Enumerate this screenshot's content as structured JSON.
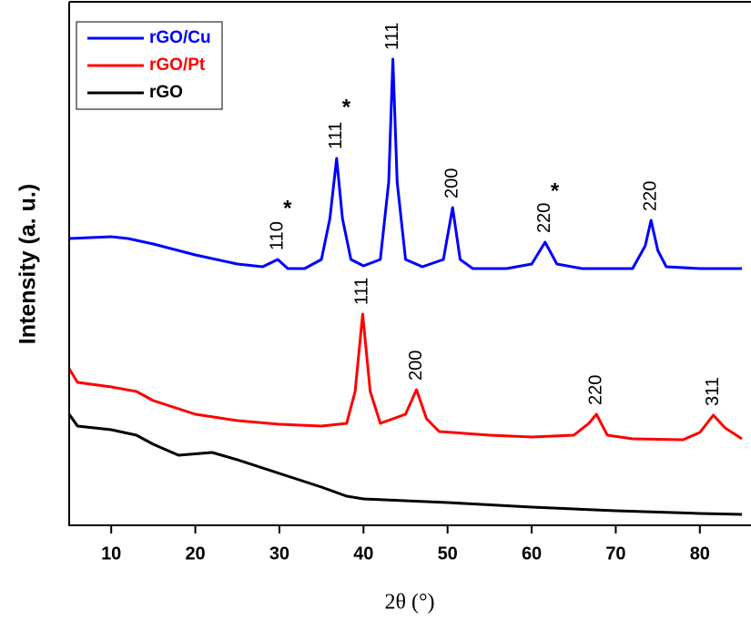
{
  "chart_data": {
    "type": "line",
    "xlabel": "2θ (°)",
    "ylabel": "Intensity (a. u.)",
    "xlim": [
      5,
      85
    ],
    "xticks": [
      10,
      20,
      30,
      40,
      50,
      60,
      70,
      80
    ],
    "ylim": [
      0,
      115
    ],
    "series": [
      {
        "name": "rGO/Cu",
        "color": "#0000ff",
        "x": [
          5,
          10,
          12,
          15,
          20,
          25,
          28,
          29.8,
          31,
          33,
          35,
          36,
          36.8,
          37.5,
          38.5,
          40,
          42,
          43,
          43.5,
          44,
          45,
          47,
          49.5,
          50.6,
          51.5,
          53,
          57,
          60,
          61.6,
          63,
          66,
          72,
          73.5,
          74.2,
          75,
          76,
          80,
          85
        ],
        "values": [
          63,
          63.4,
          63,
          61.8,
          59.4,
          57.4,
          56.8,
          58.4,
          56.4,
          56.4,
          58.4,
          67.4,
          80.6,
          67.4,
          58.4,
          57,
          58.4,
          75.4,
          102.4,
          75.4,
          58.4,
          56.8,
          58.4,
          69.8,
          58.4,
          56.4,
          56.4,
          57.4,
          62.2,
          57.4,
          56.4,
          56.4,
          61.4,
          67,
          60.4,
          56.8,
          56.4,
          56.4
        ]
      },
      {
        "name": "rGO/Pt",
        "color": "#ff0000",
        "x": [
          5,
          6,
          10,
          13,
          15,
          20,
          25,
          30,
          35,
          38,
          39,
          39.9,
          40.8,
          42,
          45,
          46.3,
          47.5,
          49,
          55,
          60,
          65,
          66.8,
          67.7,
          69,
          72,
          78,
          80,
          81.6,
          83,
          85
        ],
        "values": [
          34.4,
          31.4,
          30.4,
          29.4,
          27.4,
          24.4,
          23,
          22.2,
          21.8,
          22.4,
          29.4,
          46.4,
          29.4,
          22.4,
          24.4,
          29.8,
          23.4,
          20.6,
          19.8,
          19.4,
          19.8,
          22.4,
          24.4,
          19.8,
          19,
          18.8,
          20.4,
          24.2,
          21.4,
          19
        ]
      },
      {
        "name": "rGO",
        "color": "#000000",
        "x": [
          5,
          6,
          8,
          10,
          13,
          15,
          18,
          22,
          25,
          30,
          35,
          38,
          40,
          50,
          60,
          70,
          80,
          85
        ],
        "values": [
          24.4,
          21.8,
          21.4,
          21,
          19.8,
          17.8,
          15.4,
          16,
          14.4,
          11.4,
          8.4,
          6.4,
          5.8,
          5,
          4,
          3.2,
          2.6,
          2.4
        ]
      }
    ],
    "annotations": [
      {
        "text": "110",
        "x": 29.8,
        "series": 0,
        "marker": "*"
      },
      {
        "text": "111",
        "x": 36.8,
        "series": 0,
        "marker": "*"
      },
      {
        "text": "111",
        "x": 43.5,
        "series": 0
      },
      {
        "text": "200",
        "x": 50.6,
        "series": 0
      },
      {
        "text": "220",
        "x": 61.6,
        "series": 0,
        "marker": "*"
      },
      {
        "text": "220",
        "x": 74.2,
        "series": 0
      },
      {
        "text": "111",
        "x": 39.9,
        "series": 1
      },
      {
        "text": "200",
        "x": 46.3,
        "series": 1
      },
      {
        "text": "220",
        "x": 67.7,
        "series": 1
      },
      {
        "text": "311",
        "x": 81.6,
        "series": 1
      }
    ]
  }
}
